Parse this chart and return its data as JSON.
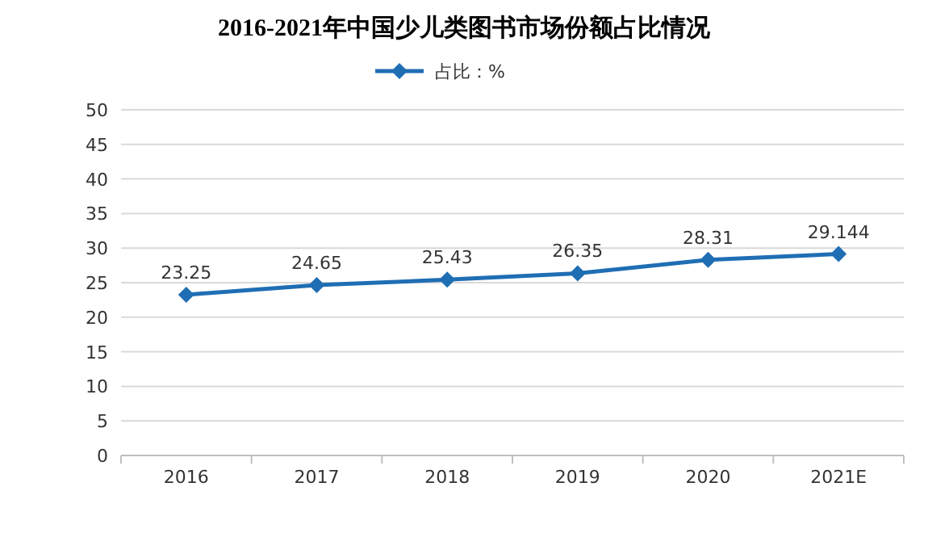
{
  "chart_data": {
    "type": "line",
    "title": "2016-2021年中国少儿类图书市场份额占比情况",
    "categories": [
      "2016",
      "2017",
      "2018",
      "2019",
      "2020",
      "2021E"
    ],
    "series": [
      {
        "name": "占比：%",
        "color": "#1f6eb4",
        "values": [
          23.25,
          24.65,
          25.43,
          26.35,
          28.31,
          29.144
        ]
      }
    ],
    "ylim": [
      0,
      50
    ],
    "yticks": [
      0,
      5,
      10,
      15,
      20,
      25,
      30,
      35,
      40,
      45,
      50
    ],
    "grid": "y",
    "legend": "top",
    "marker": "diamond",
    "line_style": "solid",
    "data_labels": true
  }
}
